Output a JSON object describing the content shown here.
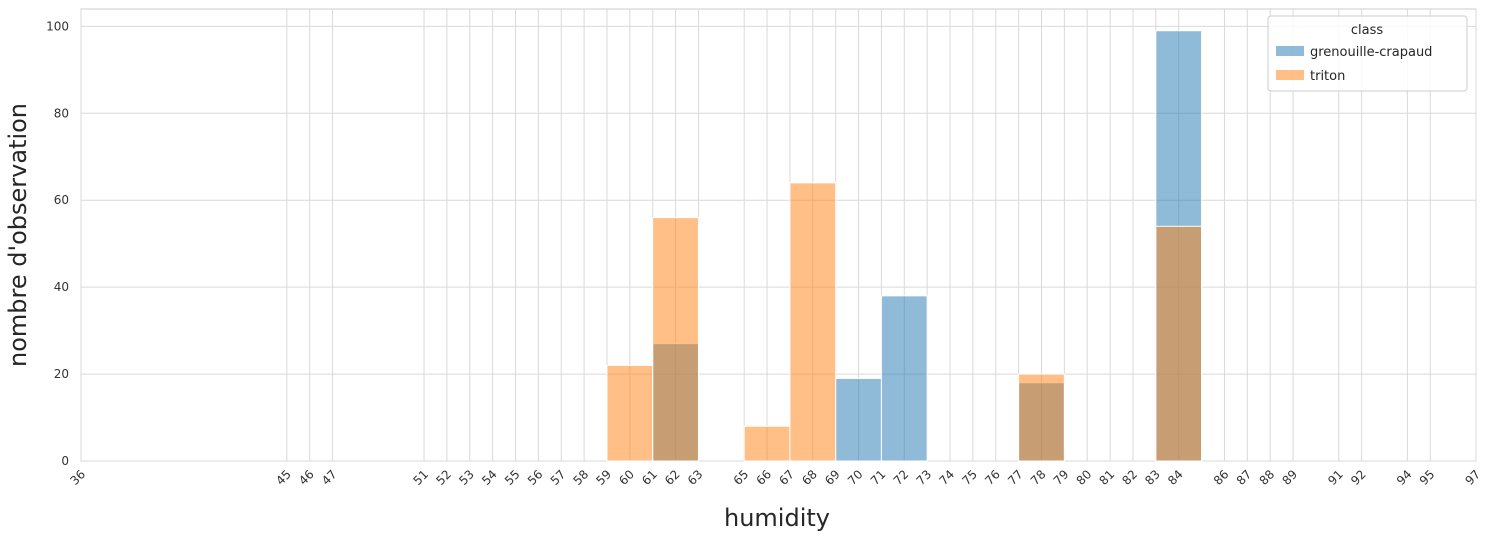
{
  "chart_data": {
    "type": "bar",
    "subtype": "overlaid histogram",
    "xlabel": "humidity",
    "ylabel": "nombre d'observation",
    "xlim": [
      36,
      97
    ],
    "ylim": [
      0,
      104
    ],
    "x_ticks": [
      36,
      45,
      46,
      47,
      51,
      52,
      53,
      54,
      55,
      56,
      57,
      58,
      59,
      60,
      61,
      62,
      63,
      65,
      66,
      67,
      68,
      69,
      70,
      71,
      72,
      73,
      74,
      75,
      76,
      77,
      78,
      79,
      80,
      81,
      82,
      83,
      84,
      86,
      87,
      88,
      89,
      91,
      92,
      94,
      95,
      97
    ],
    "y_ticks": [
      0,
      20,
      40,
      60,
      80,
      100
    ],
    "grid": true,
    "legend": {
      "title": "class",
      "position": "top-right",
      "entries": [
        "grenouille-crapaud",
        "triton"
      ]
    },
    "series": [
      {
        "name": "grenouille-crapaud",
        "color": "#1f77b4",
        "bins": [
          {
            "x0": 61,
            "x1": 63,
            "value": 27
          },
          {
            "x0": 69,
            "x1": 71,
            "value": 19
          },
          {
            "x0": 71,
            "x1": 73,
            "value": 38
          },
          {
            "x0": 77,
            "x1": 79,
            "value": 18
          },
          {
            "x0": 83,
            "x1": 85,
            "value": 99
          }
        ]
      },
      {
        "name": "triton",
        "color": "#ff7f0e",
        "bins": [
          {
            "x0": 59,
            "x1": 61,
            "value": 22
          },
          {
            "x0": 61,
            "x1": 63,
            "value": 56
          },
          {
            "x0": 65,
            "x1": 67,
            "value": 8
          },
          {
            "x0": 67,
            "x1": 69,
            "value": 64
          },
          {
            "x0": 77,
            "x1": 79,
            "value": 20
          },
          {
            "x0": 83,
            "x1": 85,
            "value": 54
          }
        ]
      }
    ]
  }
}
